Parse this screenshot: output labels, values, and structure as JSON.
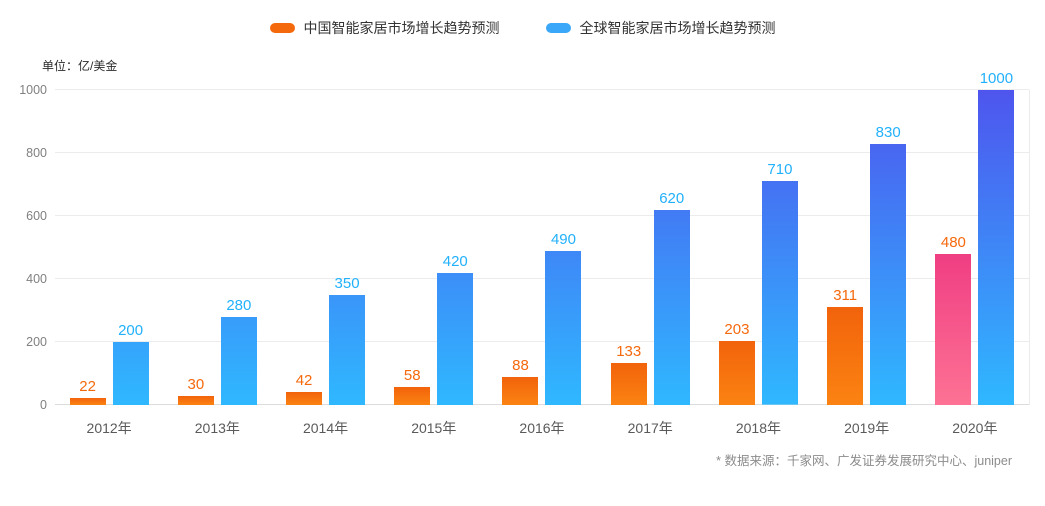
{
  "unit_label": "单位：亿/美金",
  "footer_note": "* 数据来源：千家网、广发证券发展研究中心、juniper",
  "colors": {
    "china_bar_top": "#f2630b",
    "china_bar_bottom": "#fb8312",
    "china_highlight_top": "#f03e83",
    "china_highlight_bottom": "#fd7294",
    "global_bar_top": "#4e55ee",
    "global_bar_bottom": "#2fb8ff",
    "china_label": "#f5690d",
    "global_label": "#22b1fb",
    "legend_china_swatch": "#f5690d",
    "legend_global_swatch": "#3aa7f8"
  },
  "chart_data": {
    "type": "bar",
    "categories": [
      "2012年",
      "2013年",
      "2014年",
      "2015年",
      "2016年",
      "2017年",
      "2018年",
      "2019年",
      "2020年"
    ],
    "series": [
      {
        "name": "中国智能家居市场增长趋势预测",
        "values": [
          22,
          30,
          42,
          58,
          88,
          133,
          203,
          311,
          480
        ]
      },
      {
        "name": "全球智能家居市场增长趋势预测",
        "values": [
          200,
          280,
          350,
          420,
          490,
          620,
          710,
          830,
          1000
        ]
      }
    ],
    "title": "",
    "xlabel": "",
    "ylabel": "单位：亿/美金",
    "ylim": [
      0,
      1000
    ],
    "yticks": [
      0,
      200,
      400,
      600,
      800,
      1000
    ],
    "grid": true,
    "legend_position": "top",
    "highlight": {
      "series_index": 0,
      "category": "2020年",
      "style": "pink-gradient-bar"
    }
  }
}
